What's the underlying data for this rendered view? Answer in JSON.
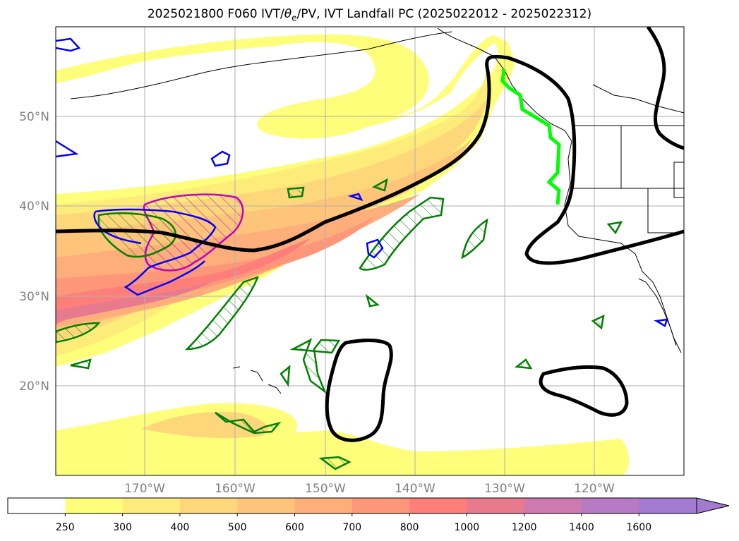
{
  "title": {
    "prefix": "2025021800 F060 IVT/",
    "theta_symbol": "θ",
    "theta_sub": "e",
    "suffix": "/PV, IVT Landfall PC (2025022012 - 2025022312)"
  },
  "map": {
    "lon_labels": [
      "170°W",
      "160°W",
      "150°W",
      "140°W",
      "130°W",
      "120°W"
    ],
    "lat_labels": [
      "50°N",
      "40°N",
      "30°N",
      "20°N"
    ]
  },
  "colorbar": {
    "labels": [
      "250",
      "300",
      "400",
      "500",
      "600",
      "700",
      "800",
      "1000",
      "1200",
      "1400",
      "1600"
    ],
    "colors": [
      "#ffffff",
      "#fefe7a",
      "#feec7a",
      "#fed77a",
      "#fec57a",
      "#feae7a",
      "#fe977a",
      "#fe7f7a",
      "#e87a8e",
      "#cd7ab0",
      "#b77ac4",
      "#a27ad0"
    ],
    "extend": "max"
  },
  "legend_colors": {
    "ivt_contour": "#000000",
    "landfall": "#00ff00",
    "pv": "#0000ff",
    "theta_e": "#008000",
    "magenta": "#c000c0"
  }
}
